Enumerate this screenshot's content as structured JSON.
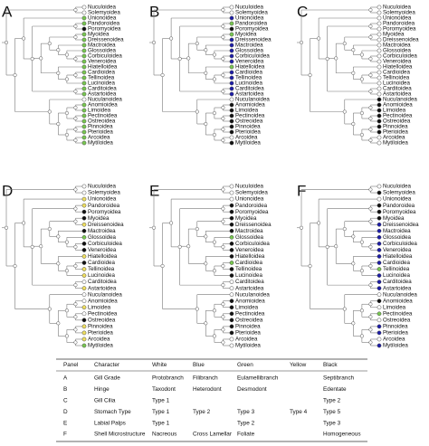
{
  "taxa": [
    "Nuculoidea",
    "Solemyoidea",
    "Unionoidea",
    "Pandoroidea",
    "Poromyoidea",
    "Myoidea",
    "Dreissenoidea",
    "Mactroidea",
    "Glossoidea",
    "Corbiculoidea",
    "Veneroidea",
    "Hiatelloidea",
    "Cardioidea",
    "Tellinoidea",
    "Lucinoidea",
    "Carditoidea",
    "Astartoidea",
    "Nuculanoidea",
    "Anomioidea",
    "Limoidea",
    "Pectinoidea",
    "Ostreoidea",
    "Pinnoidea",
    "Pterioidea",
    "Arcoidea",
    "Mytiloidea"
  ],
  "panels": [
    {
      "label": "A",
      "tip_colors": [
        "#ffffff",
        "#ffffff",
        "#78c850",
        "#78c850",
        "#111111",
        "#78c850",
        "#78c850",
        "#78c850",
        "#78c850",
        "#78c850",
        "#78c850",
        "#78c850",
        "#78c850",
        "#78c850",
        "#78c850",
        "#78c850",
        "#78c850",
        "#ffffff",
        "#78c850",
        "#78c850",
        "#78c850",
        "#78c850",
        "#78c850",
        "#78c850",
        "#78c850",
        "#78c850"
      ]
    },
    {
      "label": "B",
      "tip_colors": [
        "#ffffff",
        "#ffffff",
        "#1c1ca8",
        "#78c850",
        "#111111",
        "#78c850",
        "#1c1ca8",
        "#1c1ca8",
        "#1c1ca8",
        "#1c1ca8",
        "#1c1ca8",
        "#78c850",
        "#1c1ca8",
        "#1c1ca8",
        "#1c1ca8",
        "#1c1ca8",
        "#1c1ca8",
        "#ffffff",
        "#111111",
        "#111111",
        "#111111",
        "#111111",
        "#111111",
        "#111111",
        "#ffffff",
        "#111111"
      ]
    },
    {
      "label": "C",
      "tip_colors": [
        "#ffffff",
        "#ffffff",
        "#ffffff",
        "#ffffff",
        "#ffffff",
        "#ffffff",
        "#ffffff",
        "#ffffff",
        "#ffffff",
        "#ffffff",
        "#ffffff",
        "#ffffff",
        "#ffffff",
        "#ffffff",
        "#ffffff",
        "#ffffff",
        "#ffffff",
        "#111111",
        "#111111",
        "#111111",
        "#111111",
        "#111111",
        "#111111",
        "#111111",
        "#ffffff",
        "#ffffff"
      ]
    },
    {
      "label": "D",
      "tip_colors": [
        "#ffffff",
        "#ffffff",
        "#f0e060",
        "#f0e060",
        "#111111",
        "#111111",
        "#f0e060",
        "#111111",
        "#78c850",
        "#111111",
        "#111111",
        "#f0e060",
        "#111111",
        "#f0e060",
        "#f0e060",
        "#ffffff",
        "#f0e060",
        "#ffffff",
        "#ffffff",
        "#f0e060",
        "#ffffff",
        "#111111",
        "#f0e060",
        "#f0e060",
        "#f0e060",
        "#78c850"
      ]
    },
    {
      "label": "E",
      "tip_colors": [
        "#ffffff",
        "#ffffff",
        "#ffffff",
        "#111111",
        "#111111",
        "#111111",
        "#111111",
        "#111111",
        "#78c850",
        "#111111",
        "#111111",
        "#111111",
        "#78c850",
        "#111111",
        "#111111",
        "#ffffff",
        "#ffffff",
        "#ffffff",
        "#111111",
        "#111111",
        "#111111",
        "#111111",
        "#111111",
        "#111111",
        "#ffffff",
        "#ffffff"
      ]
    },
    {
      "label": "F",
      "tip_colors": [
        "#ffffff",
        "#111111",
        "#ffffff",
        "#111111",
        "#111111",
        "#111111",
        "#1c1ca8",
        "#1c1ca8",
        "#1c1ca8",
        "#1c1ca8",
        "#1c1ca8",
        "#1c1ca8",
        "#1c1ca8",
        "#78c850",
        "#1c1ca8",
        "#1c1ca8",
        "#1c1ca8",
        "#ffffff",
        "#111111",
        "#ffffff",
        "#78c850",
        "#ffffff",
        "#1c1ca8",
        "#1c1ca8",
        "#ffffff",
        "#1c1ca8"
      ]
    }
  ],
  "table": {
    "header": [
      "Panel",
      "Character",
      "White",
      "Blue",
      "Green",
      "Yellow",
      "Black"
    ],
    "rows": [
      [
        "A",
        "Gill Grade",
        "Protobranch",
        "Filibranch",
        "Eulamellibranch",
        "",
        "Septibranch"
      ],
      [
        "B",
        "Hinge",
        "Taxodont",
        "Heterodont",
        "Desmodont",
        "",
        "Edentate"
      ],
      [
        "C",
        "Gill Cilia",
        "Type 1",
        "",
        "",
        "",
        "Type 2"
      ],
      [
        "D",
        "Stomach Type",
        "Type 1",
        "Type 2",
        "Type 3",
        "Type 4",
        "Type 5"
      ],
      [
        "E",
        "Labial Palps",
        "Type 1",
        "",
        "Type 2",
        "",
        "Type 3"
      ],
      [
        "F",
        "Shell Microstructure",
        "Nacreous",
        "Cross Lamellar",
        "Foliate",
        "",
        "Homogeneous"
      ]
    ]
  }
}
